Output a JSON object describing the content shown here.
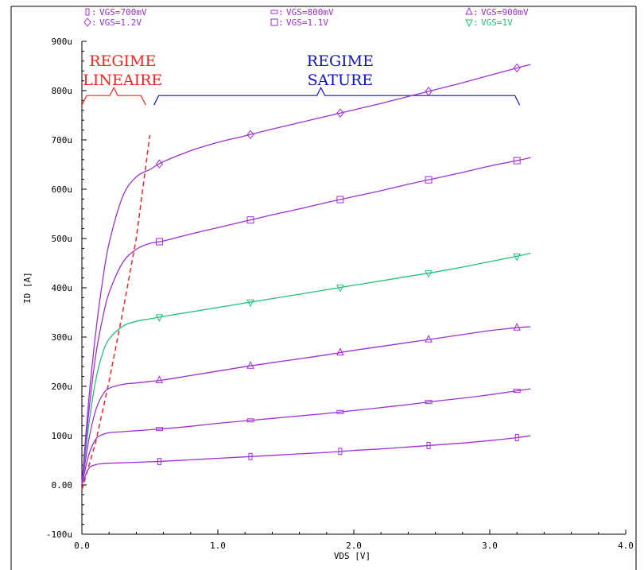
{
  "chart_data": {
    "type": "line",
    "title": "",
    "xlabel": "VDS  [V]",
    "ylabel": "ID  [A]",
    "xlim": [
      0.0,
      4.0
    ],
    "ylim": [
      -0.0001,
      0.0009
    ],
    "x_ticks": [
      {
        "value": 0.0,
        "label": "0.0"
      },
      {
        "value": 1.0,
        "label": "1.0"
      },
      {
        "value": 2.0,
        "label": "2.0"
      },
      {
        "value": 3.0,
        "label": "3.0"
      },
      {
        "value": 4.0,
        "label": "4.0"
      }
    ],
    "y_ticks": [
      {
        "value": -0.0001,
        "label": "-100u"
      },
      {
        "value": 0.0,
        "label": "0.00"
      },
      {
        "value": 0.0001,
        "label": "100u"
      },
      {
        "value": 0.0002,
        "label": "200u"
      },
      {
        "value": 0.0003,
        "label": "300u"
      },
      {
        "value": 0.0004,
        "label": "400u"
      },
      {
        "value": 0.0005,
        "label": "500u"
      },
      {
        "value": 0.0006,
        "label": "600u"
      },
      {
        "value": 0.0007,
        "label": "700u"
      },
      {
        "value": 0.0008,
        "label": "800u"
      },
      {
        "value": 0.0009,
        "label": "900u"
      }
    ],
    "grid": false,
    "legend_position": "top",
    "x": [
      0.0,
      0.05,
      0.1,
      0.15,
      0.2,
      0.3,
      0.4,
      0.5,
      0.6,
      0.8,
      1.0,
      1.2,
      1.4,
      1.6,
      1.8,
      2.0,
      2.2,
      2.4,
      2.6,
      2.8,
      3.0,
      3.2,
      3.3
    ],
    "marker_x": [
      0.57,
      1.24,
      1.9,
      2.55,
      3.2
    ],
    "series": [
      {
        "name": "VGS=700mV",
        "legend_symbol": "▯",
        "color": "#9e2fd6",
        "values": [
          0.0,
          3.3e-05,
          4.1e-05,
          4.3e-05,
          4.4e-05,
          4.5e-05,
          4.6e-05,
          4.7e-05,
          4.8e-05,
          5.1e-05,
          5.4e-05,
          5.7e-05,
          6e-05,
          6.3e-05,
          6.6e-05,
          7e-05,
          7.3e-05,
          7.7e-05,
          8.1e-05,
          8.5e-05,
          9e-05,
          9.6e-05,
          0.0001
        ]
      },
      {
        "name": "VGS=800mV",
        "legend_symbol": "▭",
        "color": "#9e2fd6",
        "values": [
          0.0,
          6e-05,
          9.2e-05,
          0.000102,
          0.000106,
          0.000108,
          0.00011,
          0.000112,
          0.000114,
          0.000119,
          0.000125,
          0.00013,
          0.000135,
          0.00014,
          0.000145,
          0.000151,
          0.000157,
          0.000163,
          0.00017,
          0.000176,
          0.000183,
          0.000191,
          0.000195
        ]
      },
      {
        "name": "VGS=900mV",
        "legend_symbol": "△",
        "color": "#9e2fd6",
        "values": [
          0.0,
          9e-05,
          0.00015,
          0.000182,
          0.000196,
          0.000204,
          0.000207,
          0.00021,
          0.000213,
          0.000222,
          0.000231,
          0.00024,
          0.000248,
          0.000256,
          0.000264,
          0.000273,
          0.000281,
          0.000289,
          0.000297,
          0.000305,
          0.000313,
          0.000319,
          0.000321
        ]
      },
      {
        "name": "VGS=1V",
        "legend_symbol": "▽",
        "color": "#22c07a",
        "values": [
          0.0,
          0.00012,
          0.00021,
          0.000265,
          0.000296,
          0.000322,
          0.000332,
          0.000337,
          0.000342,
          0.000351,
          0.00036,
          0.000369,
          0.000378,
          0.000387,
          0.000396,
          0.000405,
          0.000414,
          0.000423,
          0.000432,
          0.000442,
          0.000453,
          0.000464,
          0.00047
        ]
      },
      {
        "name": "VGS=1.1V",
        "legend_symbol": "□",
        "color": "#9e2fd6",
        "values": [
          0.0,
          0.000145,
          0.00026,
          0.000335,
          0.00039,
          0.000451,
          0.000478,
          0.00049,
          0.000495,
          0.000509,
          0.000522,
          0.000535,
          0.000548,
          0.00056,
          0.000573,
          0.000585,
          0.000597,
          0.00061,
          0.000622,
          0.000634,
          0.000647,
          0.000658,
          0.000664
        ]
      },
      {
        "name": "VGS=1.2V",
        "legend_symbol": "◇",
        "color": "#9e2fd6",
        "values": [
          0.0,
          0.00017,
          0.000305,
          0.00041,
          0.00049,
          0.000585,
          0.000625,
          0.00064,
          0.000656,
          0.000678,
          0.000695,
          0.000708,
          0.000722,
          0.000735,
          0.000748,
          0.000761,
          0.000774,
          0.000788,
          0.000802,
          0.000816,
          0.000831,
          0.000846,
          0.000853
        ]
      }
    ],
    "annotations": [
      {
        "lines": [
          "REGIME",
          "LINEAIRE"
        ],
        "color": "#ff2020"
      },
      {
        "lines": [
          "REGIME",
          "SATURE"
        ],
        "color": "#1010c8"
      }
    ],
    "boundary_line": {
      "style": "dashed",
      "color": "#ff2020",
      "x": [
        0.0,
        0.1,
        0.2,
        0.3,
        0.4,
        0.5
      ],
      "y": [
        -1e-05,
        8.5e-05,
        0.00021,
        0.00035,
        0.0005,
        0.00071
      ]
    },
    "braces": [
      {
        "x_range": [
          0.0,
          0.47
        ],
        "y": 0.00079,
        "color": "#ff2020"
      },
      {
        "x_range": [
          0.53,
          3.22
        ],
        "y": 0.00079,
        "color": "#1010c8"
      }
    ]
  }
}
